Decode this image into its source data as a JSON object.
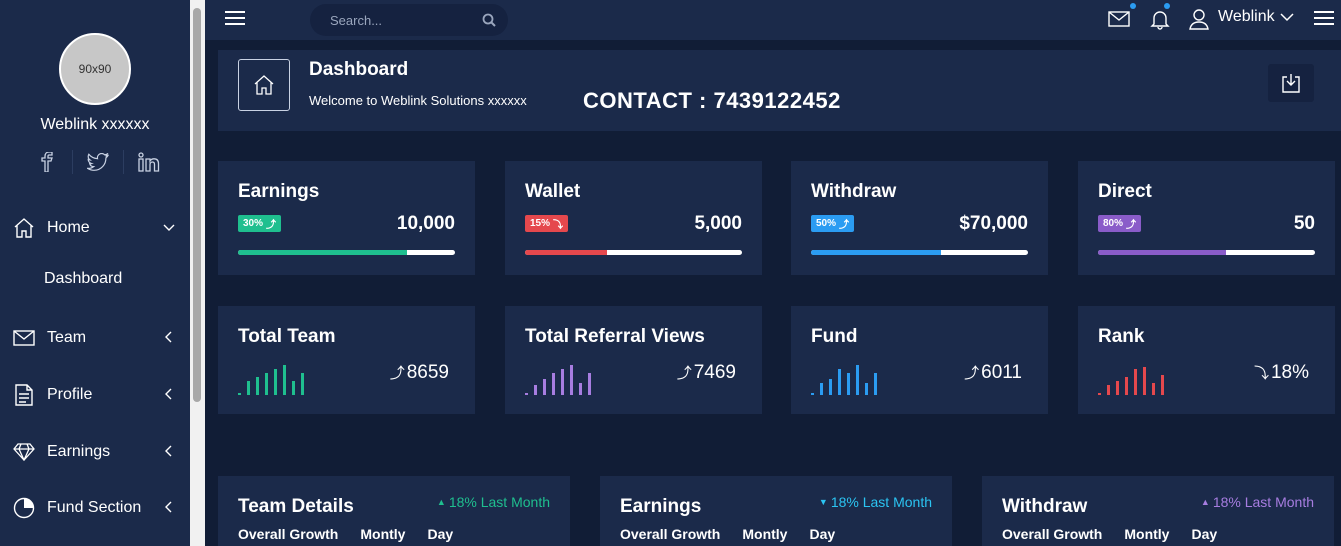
{
  "sidebar": {
    "avatar_text": "90x90",
    "user_name": "Weblink xxxxxx",
    "social_icons": [
      "facebook-icon",
      "twitter-icon",
      "linkedin-icon"
    ],
    "social_labels": [
      "f",
      "t",
      "in"
    ],
    "items": [
      {
        "label": "Home",
        "icon": "home-icon",
        "expanded": true
      },
      {
        "label": "Team",
        "icon": "mail-icon"
      },
      {
        "label": "Profile",
        "icon": "document-icon"
      },
      {
        "label": "Earnings",
        "icon": "diamond-icon"
      },
      {
        "label": "Fund Section",
        "icon": "pie-chart-icon"
      }
    ],
    "sub_items": [
      "Dashboard"
    ]
  },
  "topbar": {
    "search_placeholder": "Search...",
    "user_label": "Weblink"
  },
  "header": {
    "title": "Dashboard",
    "subtitle": "Welcome to Weblink Solutions xxxxxx",
    "contact": "CONTACT : 7439122452"
  },
  "stats": [
    {
      "title": "Earnings",
      "badge": "30%",
      "badge_dir": "up",
      "value": "10,000",
      "color": "#1fbf8f",
      "progress": 0.78
    },
    {
      "title": "Wallet",
      "badge": "15%",
      "badge_dir": "down",
      "value": "5,000",
      "color": "#e5484d",
      "progress": 0.38
    },
    {
      "title": "Withdraw",
      "badge": "50%",
      "badge_dir": "up",
      "value": "$70,000",
      "color": "#2b9cf2",
      "progress": 0.6
    },
    {
      "title": "Direct",
      "badge": "80%",
      "badge_dir": "up",
      "value": "50",
      "color": "#8a5cc9",
      "progress": 0.59
    }
  ],
  "sparks": [
    {
      "title": "Total Team",
      "value": "8659",
      "dir": "up",
      "color": "#1fbf8f",
      "bars": [
        2,
        14,
        18,
        22,
        26,
        30,
        14,
        22
      ]
    },
    {
      "title": "Total Referral Views",
      "value": "7469",
      "dir": "up",
      "color": "#a77de0",
      "bars": [
        2,
        10,
        16,
        22,
        26,
        30,
        12,
        22
      ]
    },
    {
      "title": "Fund",
      "value": "6011",
      "dir": "up",
      "color": "#2b9cf2",
      "bars": [
        2,
        12,
        16,
        26,
        22,
        30,
        12,
        22
      ]
    },
    {
      "title": "Rank",
      "value": "18%",
      "dir": "down",
      "color": "#e5484d",
      "bars": [
        2,
        10,
        14,
        18,
        26,
        28,
        12,
        20
      ]
    }
  ],
  "bottom": [
    {
      "title": "Team Details",
      "trend": "18% Last Month",
      "trend_dir": "up",
      "color": "#1fbf8f"
    },
    {
      "title": "Earnings",
      "trend": "18% Last Month",
      "trend_dir": "down",
      "color": "#2bc4f2"
    },
    {
      "title": "Withdraw",
      "trend": "18% Last Month",
      "trend_dir": "up",
      "color": "#a77de0"
    }
  ],
  "bottom_tabs": [
    "Overall Growth",
    "Montly",
    "Day"
  ]
}
